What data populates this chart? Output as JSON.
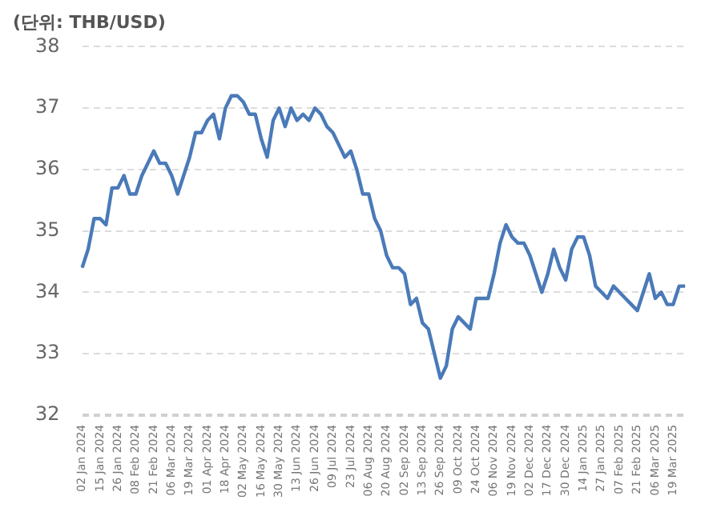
{
  "chart_data": {
    "type": "line",
    "title": "(단위: THB/USD)",
    "categories": [
      "02 Jan 2024",
      null,
      null,
      "15 Jan 2024",
      null,
      null,
      "26 Jan 2024",
      null,
      null,
      "08 Feb 2024",
      null,
      null,
      "21 Feb 2024",
      null,
      null,
      "06 Mar 2024",
      null,
      null,
      "19 Mar 2024",
      null,
      null,
      "01 Apr 2024",
      null,
      null,
      "18 Apr 2024",
      null,
      null,
      "02 May 2024",
      null,
      null,
      "16 May 2024",
      null,
      null,
      "30 May 2024",
      null,
      null,
      "13 Jun 2024",
      null,
      null,
      "26 Jun 2024",
      null,
      null,
      "09 Jul 2024",
      null,
      null,
      "23 Jul 2024",
      null,
      null,
      "06 Aug 2024",
      null,
      null,
      "20 Aug 2024",
      null,
      null,
      "02 Sep 2024",
      null,
      null,
      "13 Sep 2024",
      null,
      null,
      "26 Sep 2024",
      null,
      null,
      "09 Oct 2024",
      null,
      null,
      "24 Oct 2024",
      null,
      null,
      "06 Nov 2024",
      null,
      null,
      "19 Nov 2024",
      null,
      null,
      "02 Dec 2024",
      null,
      null,
      "17 Dec 2024",
      null,
      null,
      "30 Dec 2024",
      null,
      null,
      "14 Jan 2025",
      null,
      null,
      "27 Jan 2025",
      null,
      null,
      "07 Feb 2025",
      null,
      null,
      "21 Feb 2025",
      null,
      null,
      "06 Mar 2025",
      null,
      null,
      "19 Mar 2025",
      null,
      null
    ],
    "series": [
      {
        "color": "#4a7ab8",
        "values": [
          34.4,
          34.7,
          35.2,
          35.2,
          35.1,
          35.7,
          35.7,
          35.9,
          35.6,
          35.6,
          35.9,
          36.1,
          36.3,
          36.1,
          36.1,
          35.9,
          35.6,
          35.9,
          36.2,
          36.6,
          36.6,
          36.8,
          36.9,
          36.5,
          37.0,
          37.2,
          37.2,
          37.1,
          36.9,
          36.9,
          36.5,
          36.2,
          36.8,
          37.0,
          36.7,
          37.0,
          36.8,
          36.9,
          36.8,
          37.0,
          36.9,
          36.7,
          36.6,
          36.4,
          36.2,
          36.3,
          36.0,
          35.6,
          35.6,
          35.2,
          35.0,
          34.6,
          34.4,
          34.4,
          34.3,
          33.8,
          33.9,
          33.5,
          33.4,
          33.0,
          32.6,
          32.8,
          33.4,
          33.6,
          33.5,
          33.4,
          33.9,
          33.9,
          33.9,
          34.3,
          34.8,
          35.1,
          34.9,
          34.8,
          34.8,
          34.6,
          34.3,
          34.0,
          34.3,
          34.7,
          34.4,
          34.2,
          34.7,
          34.9,
          34.9,
          34.6,
          34.1,
          34.0,
          33.9,
          34.1,
          34.0,
          33.9,
          33.8,
          33.7,
          34.0,
          34.3,
          33.9,
          34.0,
          33.8,
          33.8,
          34.1,
          34.1
        ]
      }
    ],
    "ylim": [
      32,
      38
    ],
    "yticks": [
      32,
      33,
      34,
      35,
      36,
      37,
      38
    ],
    "grid": "y",
    "legend": false,
    "marker": "none",
    "line_style": "solid"
  }
}
